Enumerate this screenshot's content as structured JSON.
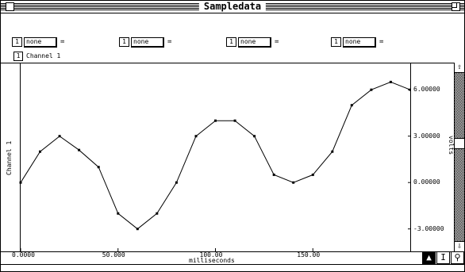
{
  "window": {
    "title": "Sampledata"
  },
  "controls": [
    {
      "channel": "1",
      "select": "none",
      "eq": "="
    },
    {
      "channel": "1",
      "select": "none",
      "eq": "="
    },
    {
      "channel": "1",
      "select": "none",
      "eq": "="
    },
    {
      "channel": "1",
      "select": "none",
      "eq": "="
    }
  ],
  "channel": {
    "number": "1",
    "label": "Channel 1",
    "axis_label": "Channel 1"
  },
  "icons": {
    "up": "scroll-up-arrow-icon",
    "down": "scroll-down-arrow-icon",
    "arrow": "arrow-tool-icon",
    "ibeam": "ibeam-tool-icon",
    "zoom": "magnifier-tool-icon"
  },
  "chart_data": {
    "type": "line",
    "xlabel": "milliseconds",
    "ylabel": "volts",
    "x_tick_labels": [
      "0.0000",
      "50.000",
      "100.00",
      "150.00"
    ],
    "y_tick_labels": [
      "6.00000",
      "3.00000",
      "0.00000",
      "-3.00000"
    ],
    "xlim": [
      0,
      200
    ],
    "ylim": [
      -4.4,
      7.7
    ],
    "x": [
      0,
      10,
      20,
      30,
      40,
      50,
      60,
      70,
      80,
      90,
      100,
      110,
      120,
      130,
      140,
      150,
      160,
      170,
      180,
      190,
      200
    ],
    "series": [
      {
        "values": [
          0.0,
          2.0,
          3.0,
          2.1,
          1.0,
          -2.0,
          -3.0,
          -2.0,
          0.0,
          3.0,
          4.0,
          4.0,
          3.0,
          0.5,
          0.0,
          0.5,
          2.0,
          5.0,
          6.0,
          6.5,
          6.0
        ]
      }
    ],
    "grid": false,
    "legend": "none"
  }
}
